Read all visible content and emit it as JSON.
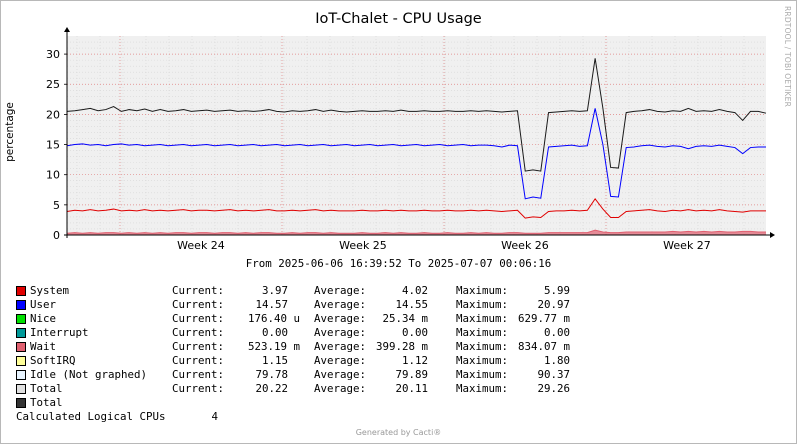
{
  "title": "IoT-Chalet - CPU Usage",
  "watermark": "RRDTOOL / TOBI OETIKER",
  "time_range": "From 2025-06-06 16:39:52 To 2025-07-07 00:06:16",
  "footer": "Generated by Cacti®",
  "chart_data": {
    "type": "line",
    "title": "IoT-Chalet - CPU Usage",
    "ylabel": "percentage",
    "ylim": [
      0,
      33
    ],
    "y_ticks": [
      0,
      5,
      10,
      15,
      20,
      25,
      30
    ],
    "x_ticks": [
      "Week 24",
      "Week 25",
      "Week 26",
      "Week 27"
    ],
    "grid": true,
    "series": [
      {
        "name": "Total",
        "color": "#1a1a1a",
        "values": [
          20.5,
          20.6,
          20.8,
          21.0,
          20.6,
          20.8,
          21.3,
          20.5,
          20.8,
          20.6,
          20.9,
          20.5,
          20.8,
          20.5,
          20.6,
          20.8,
          20.5,
          20.6,
          20.7,
          20.5,
          20.6,
          20.7,
          20.5,
          20.6,
          20.5,
          20.6,
          20.8,
          20.5,
          20.4,
          20.6,
          20.5,
          20.6,
          20.8,
          20.5,
          20.7,
          20.5,
          20.4,
          20.5,
          20.6,
          20.5,
          20.5,
          20.6,
          20.5,
          20.7,
          20.5,
          20.5,
          20.6,
          20.5,
          20.5,
          20.6,
          20.5,
          20.5,
          20.6,
          20.5,
          20.6,
          20.5,
          20.4,
          20.5,
          20.6,
          10.6,
          10.8,
          10.6,
          20.3,
          20.4,
          20.5,
          20.6,
          20.5,
          20.6,
          29.3,
          21.0,
          11.2,
          11.1,
          20.3,
          20.5,
          20.6,
          20.8,
          20.5,
          20.4,
          20.6,
          20.5,
          21.0,
          20.5,
          20.6,
          20.5,
          20.8,
          20.5,
          20.3,
          19.0,
          20.5,
          20.5,
          20.2
        ]
      },
      {
        "name": "User",
        "color": "#0000ff",
        "values": [
          14.8,
          15.0,
          15.1,
          14.9,
          15.0,
          14.8,
          15.0,
          15.1,
          14.9,
          15.0,
          14.8,
          14.9,
          15.0,
          14.8,
          14.9,
          15.0,
          14.8,
          14.9,
          15.0,
          14.8,
          14.9,
          15.0,
          14.8,
          14.9,
          15.0,
          14.8,
          14.9,
          15.0,
          14.8,
          14.9,
          15.0,
          14.8,
          14.9,
          15.0,
          14.8,
          14.9,
          15.0,
          14.8,
          14.9,
          15.0,
          14.8,
          14.9,
          15.0,
          14.8,
          14.9,
          15.0,
          14.8,
          14.9,
          15.0,
          14.8,
          14.9,
          15.0,
          14.8,
          14.9,
          14.9,
          14.8,
          14.6,
          14.9,
          14.8,
          6.0,
          6.3,
          6.1,
          14.6,
          14.7,
          14.8,
          14.9,
          14.7,
          14.8,
          21.0,
          15.0,
          6.4,
          6.3,
          14.5,
          14.6,
          14.8,
          14.9,
          14.7,
          14.6,
          14.8,
          14.7,
          14.3,
          14.7,
          14.8,
          14.7,
          14.9,
          14.7,
          14.5,
          13.5,
          14.5,
          14.6,
          14.6
        ]
      },
      {
        "name": "System",
        "color": "#e00000",
        "values": [
          3.9,
          4.1,
          4.0,
          4.2,
          4.0,
          4.1,
          4.3,
          4.0,
          4.1,
          4.0,
          4.2,
          4.0,
          4.1,
          4.0,
          4.1,
          4.2,
          4.0,
          4.1,
          4.1,
          4.0,
          4.1,
          4.2,
          4.0,
          4.1,
          4.0,
          4.1,
          4.2,
          4.0,
          4.0,
          4.1,
          4.0,
          4.1,
          4.2,
          4.0,
          4.1,
          4.0,
          4.0,
          4.0,
          4.1,
          4.0,
          4.0,
          4.1,
          4.0,
          4.1,
          4.0,
          4.0,
          4.1,
          4.0,
          4.0,
          4.1,
          4.0,
          4.0,
          4.1,
          4.0,
          4.1,
          4.0,
          3.9,
          4.0,
          4.1,
          2.8,
          3.0,
          2.9,
          3.9,
          4.0,
          4.0,
          4.1,
          4.0,
          4.1,
          6.0,
          4.3,
          2.9,
          2.9,
          3.9,
          4.0,
          4.1,
          4.2,
          4.0,
          3.9,
          4.1,
          4.0,
          4.2,
          4.0,
          4.1,
          4.0,
          4.2,
          4.0,
          3.9,
          3.8,
          4.0,
          4.0,
          4.0
        ]
      },
      {
        "name": "Wait",
        "color": "#e06070",
        "values": [
          0.3,
          0.4,
          0.3,
          0.4,
          0.3,
          0.4,
          0.4,
          0.3,
          0.4,
          0.3,
          0.4,
          0.3,
          0.4,
          0.3,
          0.4,
          0.4,
          0.3,
          0.4,
          0.4,
          0.3,
          0.4,
          0.4,
          0.3,
          0.4,
          0.3,
          0.4,
          0.4,
          0.3,
          0.3,
          0.4,
          0.3,
          0.4,
          0.4,
          0.3,
          0.4,
          0.3,
          0.3,
          0.3,
          0.4,
          0.3,
          0.3,
          0.4,
          0.3,
          0.4,
          0.3,
          0.3,
          0.4,
          0.3,
          0.3,
          0.4,
          0.3,
          0.3,
          0.4,
          0.3,
          0.4,
          0.3,
          0.3,
          0.4,
          0.4,
          0.3,
          0.3,
          0.3,
          0.4,
          0.4,
          0.4,
          0.4,
          0.4,
          0.4,
          0.8,
          0.5,
          0.4,
          0.4,
          0.5,
          0.5,
          0.5,
          0.5,
          0.5,
          0.5,
          0.6,
          0.5,
          0.6,
          0.5,
          0.6,
          0.5,
          0.6,
          0.5,
          0.5,
          0.6,
          0.6,
          0.5,
          0.5
        ]
      }
    ]
  },
  "legend": {
    "rows": [
      {
        "color": "#e00000",
        "name": "System",
        "cur_label": "Current:",
        "cur": "3.97",
        "avg_label": "Average:",
        "avg": "4.02",
        "max_label": "Maximum:",
        "max": "5.99"
      },
      {
        "color": "#0000ff",
        "name": "User",
        "cur_label": "Current:",
        "cur": "14.57",
        "avg_label": "Average:",
        "avg": "14.55",
        "max_label": "Maximum:",
        "max": "20.97"
      },
      {
        "color": "#00e000",
        "name": "Nice",
        "cur_label": "Current:",
        "cur": "176.40 u",
        "avg_label": "Average:",
        "avg": "25.34 m",
        "max_label": "Maximum:",
        "max": "629.77 m"
      },
      {
        "color": "#009999",
        "name": "Interrupt",
        "cur_label": "Current:",
        "cur": "0.00",
        "avg_label": "Average:",
        "avg": "0.00",
        "max_label": "Maximum:",
        "max": "0.00"
      },
      {
        "color": "#e06070",
        "name": "Wait",
        "cur_label": "Current:",
        "cur": "523.19 m",
        "avg_label": "Average:",
        "avg": "399.28 m",
        "max_label": "Maximum:",
        "max": "834.07 m"
      },
      {
        "color": "#ffff99",
        "name": "SoftIRQ",
        "cur_label": "Current:",
        "cur": "1.15",
        "avg_label": "Average:",
        "avg": "1.12",
        "max_label": "Maximum:",
        "max": "1.80"
      },
      {
        "color": "#e8f4ff",
        "name": "Idle (Not graphed)",
        "cur_label": "Current:",
        "cur": "79.78",
        "avg_label": "Average:",
        "avg": "79.89",
        "max_label": "Maximum:",
        "max": "90.37"
      },
      {
        "color": "#e0e0e0",
        "name": "Total",
        "cur_label": "Current:",
        "cur": "20.22",
        "avg_label": "Average:",
        "avg": "20.11",
        "max_label": "Maximum:",
        "max": "29.26"
      },
      {
        "color": "#333333",
        "name": "Total",
        "cur_label": "",
        "cur": "",
        "avg_label": "",
        "avg": "",
        "max_label": "",
        "max": ""
      }
    ],
    "footnote_label": "Calculated Logical CPUs",
    "footnote_value": "4"
  }
}
